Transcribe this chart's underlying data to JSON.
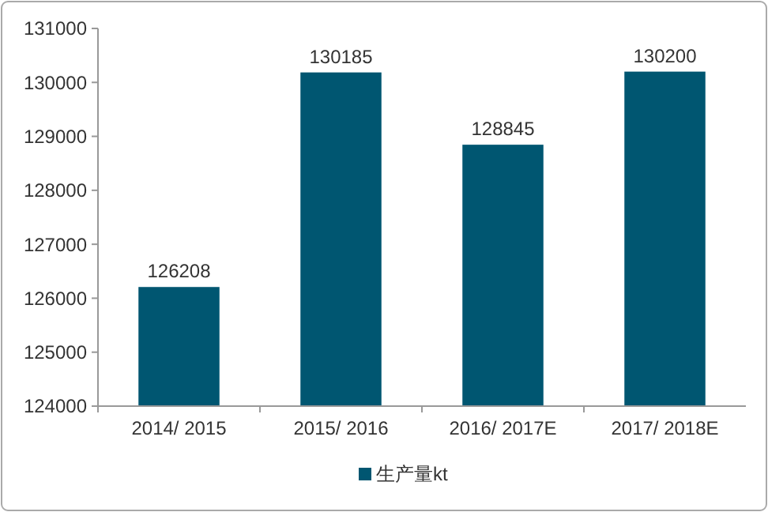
{
  "chart_data": {
    "type": "bar",
    "categories": [
      "2014/ 2015",
      "2015/ 2016",
      "2016/ 2017E",
      "2017/ 2018E"
    ],
    "series": [
      {
        "name": "生产量kt",
        "color": "#005671",
        "values": [
          126208,
          130185,
          128845,
          130200
        ]
      }
    ],
    "ylim": [
      124000,
      131000
    ],
    "yticks": [
      124000,
      125000,
      126000,
      127000,
      128000,
      129000,
      130000,
      131000
    ],
    "data_labels": true,
    "legend": "bottom"
  }
}
